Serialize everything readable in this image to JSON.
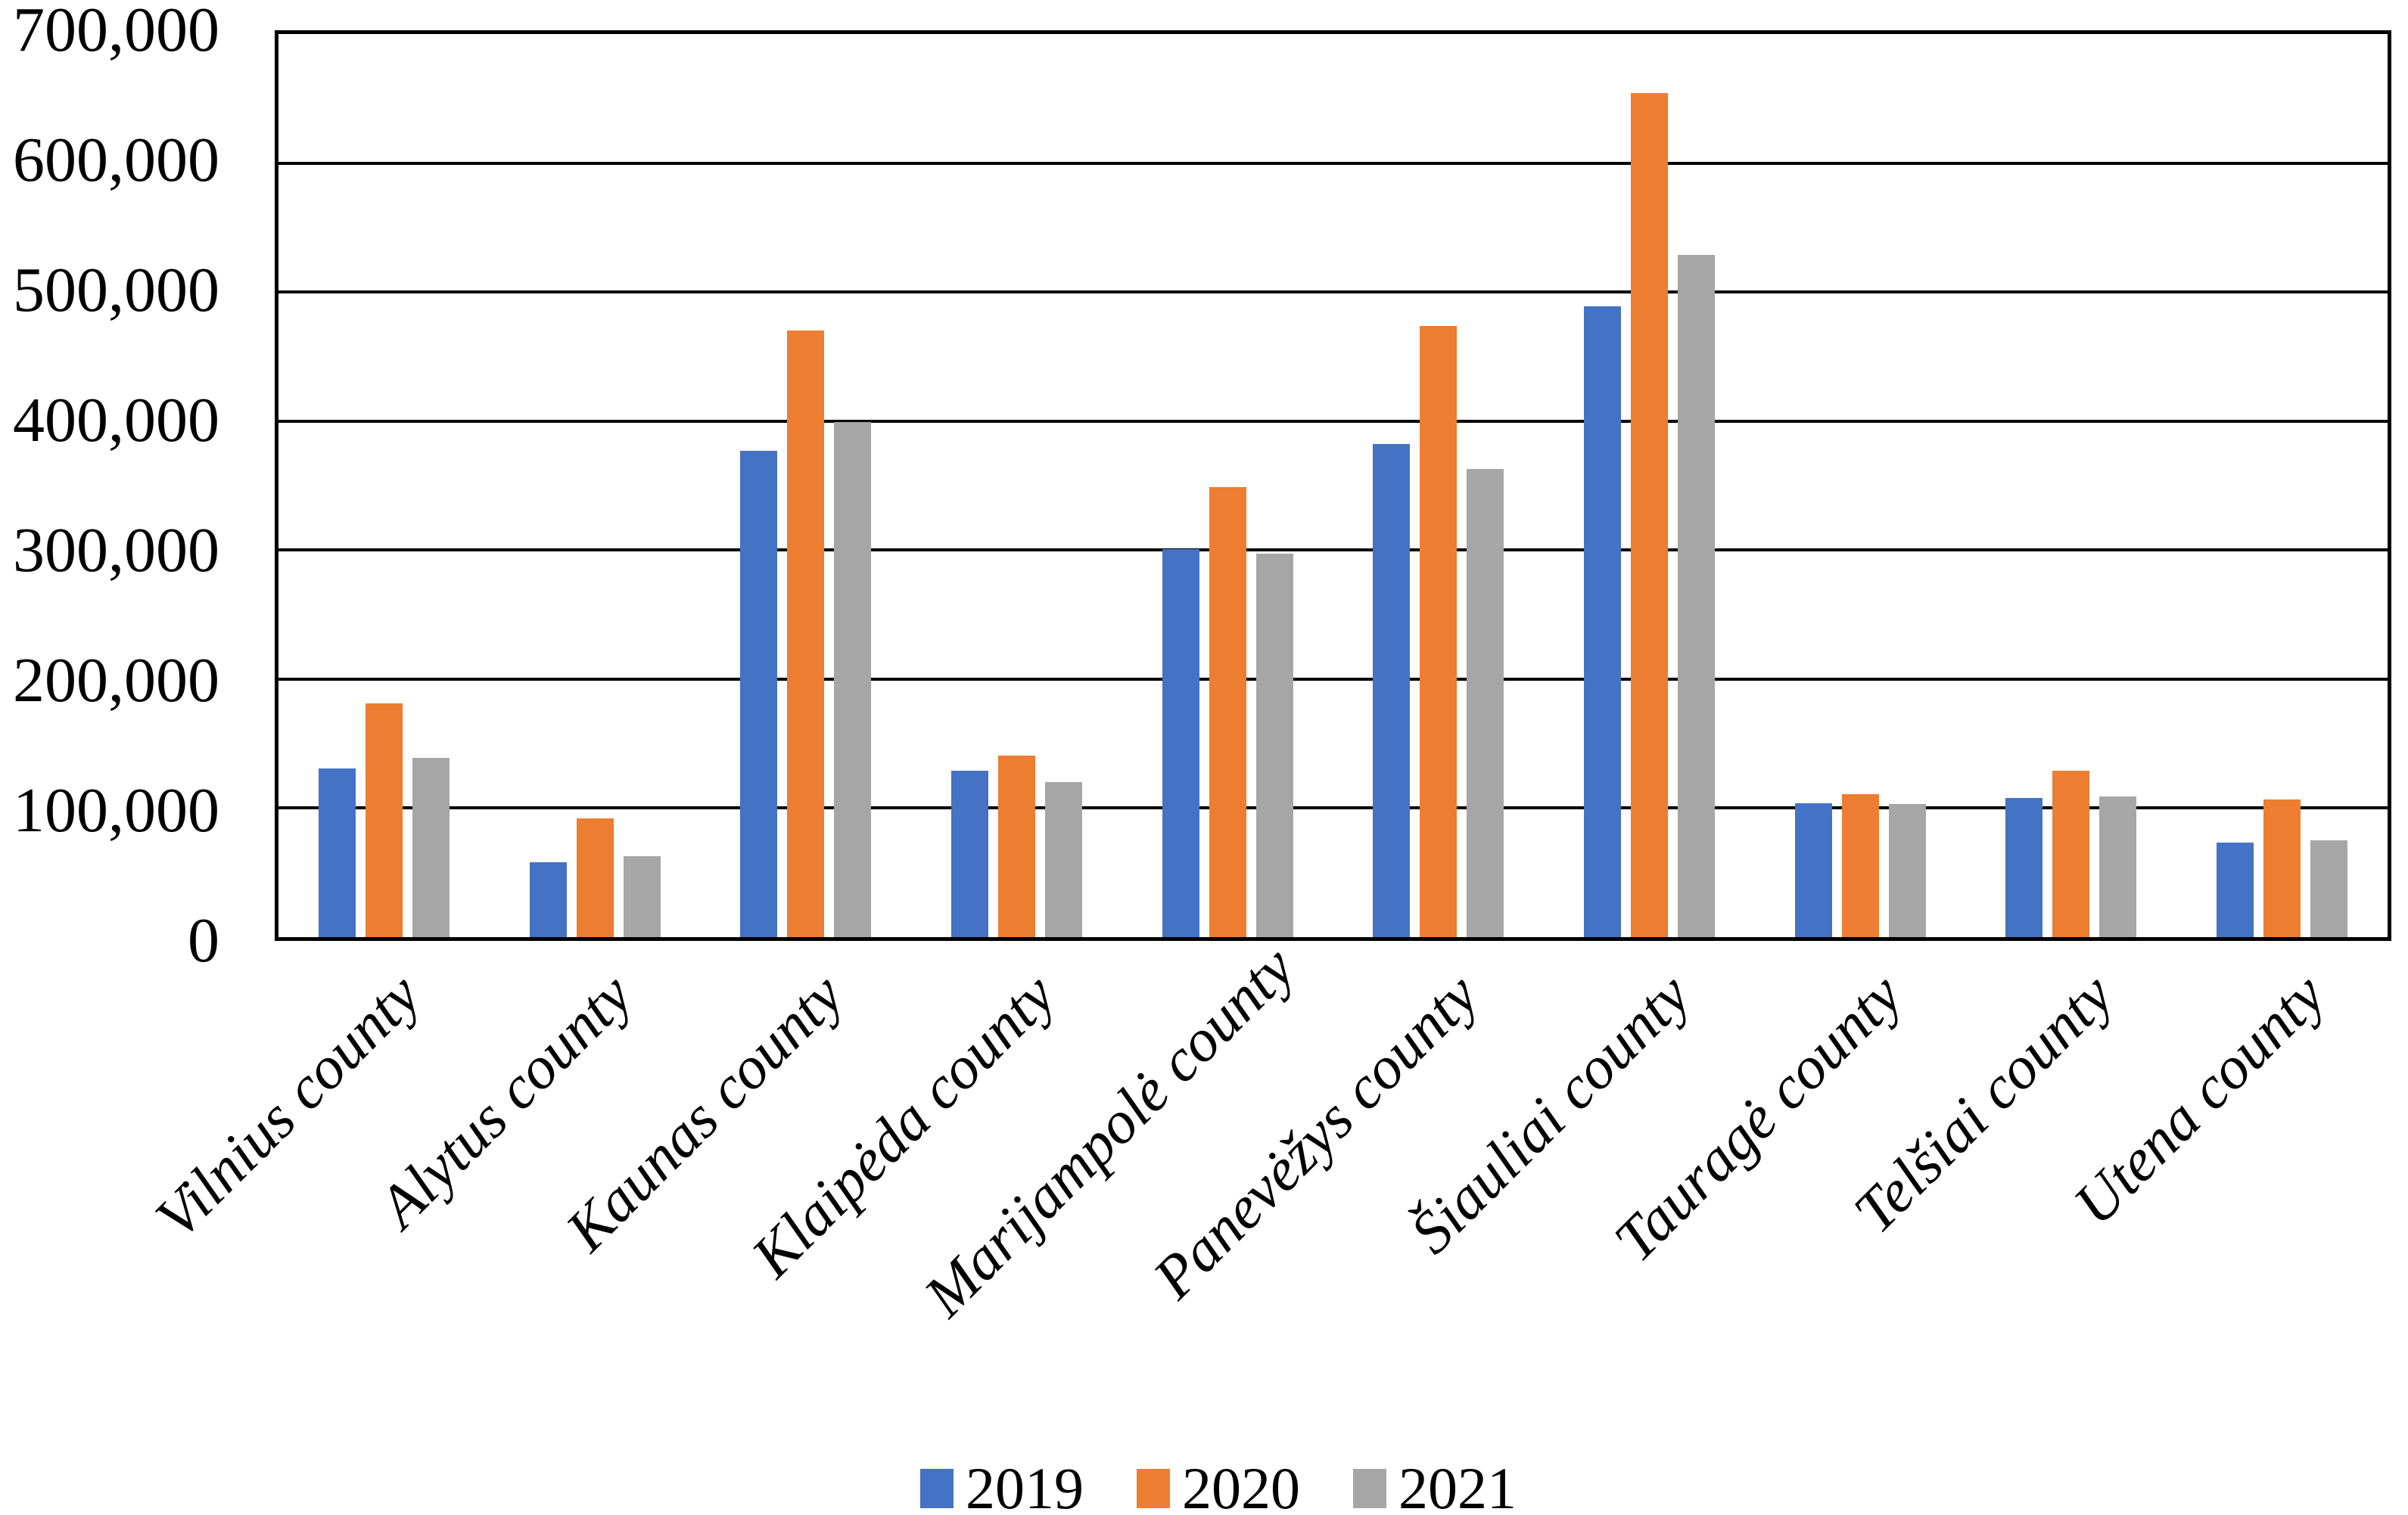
{
  "chart_data": {
    "type": "bar",
    "title": "",
    "xlabel": "",
    "ylabel": "",
    "categories": [
      "Vilnius county",
      "Alytus county",
      "Kaunas county",
      "Klaipėda county",
      "Marijampolė county",
      "Panevėžys county",
      "Šiauliai county",
      "Tauragė county",
      "Telšiai county",
      "Utena county"
    ],
    "series": [
      {
        "name": "2019",
        "color": "#4472C4",
        "values": [
          131000,
          58000,
          377000,
          129000,
          301000,
          382000,
          489000,
          104000,
          108000,
          73000
        ]
      },
      {
        "name": "2020",
        "color": "#ED7D31",
        "values": [
          181000,
          92000,
          470000,
          141000,
          349000,
          474000,
          654000,
          111000,
          129000,
          107000
        ]
      },
      {
        "name": "2021",
        "color": "#A6A6A6",
        "values": [
          139000,
          63000,
          399000,
          120000,
          297000,
          363000,
          529000,
          103000,
          109000,
          75000
        ]
      }
    ],
    "ylim": [
      0,
      700000
    ],
    "ytick_interval": 100000,
    "ytick_labels": [
      "0",
      "100,000",
      "200,000",
      "300,000",
      "400,000",
      "500,000",
      "600,000",
      "700,000"
    ],
    "grid": "horizontal-black",
    "frame": "full-border",
    "legend_position": "bottom-center",
    "background": "#ffffff",
    "text_color": "#000000"
  }
}
